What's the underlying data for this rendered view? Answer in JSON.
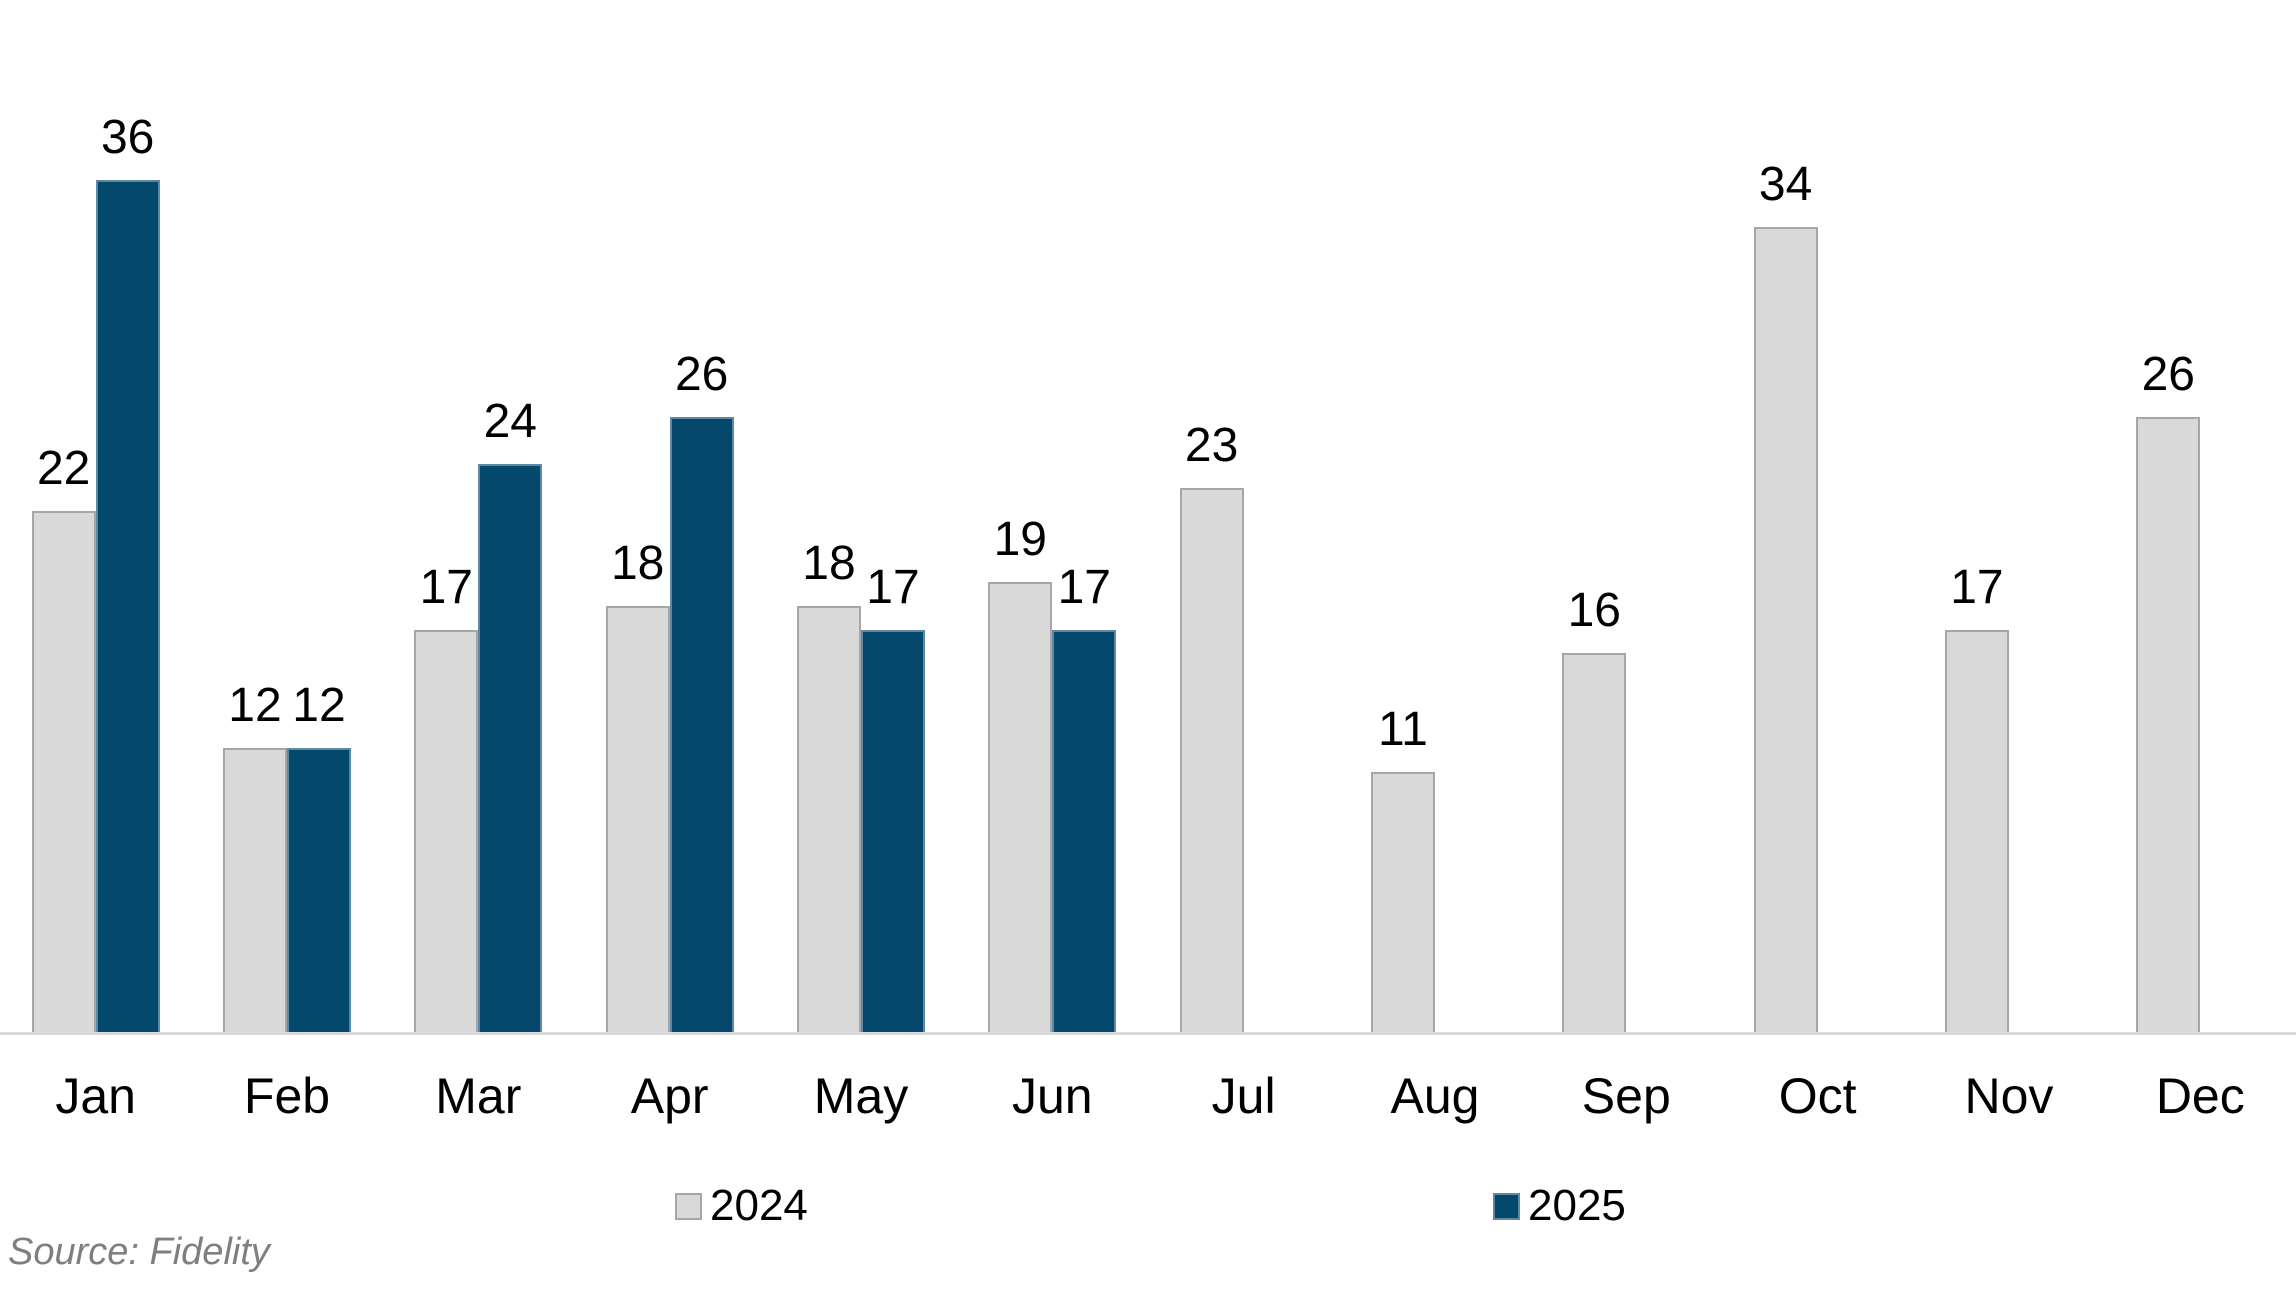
{
  "chart_data": {
    "type": "bar",
    "title": "",
    "xlabel": "",
    "ylabel": "",
    "categories": [
      "Jan",
      "Feb",
      "Mar",
      "Apr",
      "May",
      "Jun",
      "Jul",
      "Aug",
      "Sep",
      "Oct",
      "Nov",
      "Dec"
    ],
    "series": [
      {
        "name": "2024",
        "fill_color": "#D9D9D9",
        "border_color": "#A6A6A6",
        "values": [
          22,
          12,
          17,
          18,
          18,
          19,
          23,
          11,
          16,
          34,
          17,
          26
        ]
      },
      {
        "name": "2025",
        "fill_color": "#05486E",
        "border_color": "#5E89A6",
        "values": [
          36,
          12,
          24,
          26,
          17,
          17,
          null,
          null,
          null,
          null,
          null,
          null
        ]
      }
    ],
    "value_labels_shown": true,
    "ylim": [
      0,
      36
    ],
    "grid": false,
    "y_axis_shown": false,
    "axis_line_color": "#D9D9D9",
    "legend_position": "bottom",
    "background_color": "#FFFFFF",
    "source_note": "Source: Fidelity"
  }
}
